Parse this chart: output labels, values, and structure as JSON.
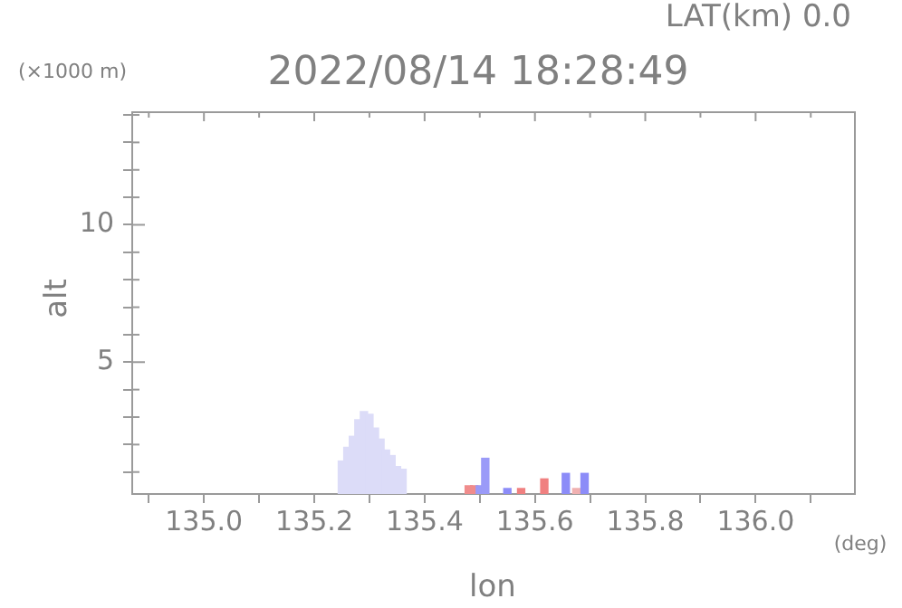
{
  "chart_data": {
    "type": "bar",
    "title": "2022/08/14 18:28:49",
    "xlabel": "lon",
    "ylabel": "alt",
    "annotations": [
      "LAT(km) 0.0",
      "(×1000 m)",
      "(deg)"
    ],
    "x": [
      135.25,
      135.26,
      135.27,
      135.28,
      135.29,
      135.3,
      135.31,
      135.32,
      135.33,
      135.34,
      135.35,
      135.36,
      135.48,
      135.49,
      135.5,
      135.51,
      135.55,
      135.575,
      135.617,
      135.656,
      135.675,
      135.69
    ],
    "values": [
      1.4,
      1.9,
      2.3,
      2.9,
      3.2,
      3.1,
      2.6,
      2.2,
      1.8,
      1.6,
      1.2,
      1.1,
      0.5,
      0.5,
      0.5,
      1.5,
      0.4,
      0.4,
      0.75,
      0.95,
      0.4,
      0.95
    ],
    "colors": [
      "#dcdcf8",
      "#dcdcf8",
      "#dcdcf8",
      "#dcdcf8",
      "#dcdcf8",
      "#dcdcf8",
      "#dcdcf8",
      "#dcdcf8",
      "#dcdcf8",
      "#dcdcf8",
      "#dcdcf8",
      "#dcdcf8",
      "#f08c8c",
      "#f08c8c",
      "#9a9af8",
      "#9a9af8",
      "#8c8cf8",
      "#f08080",
      "#f08080",
      "#8c8cf8",
      "#f0b0b0",
      "#8c8cf8"
    ],
    "xlim": [
      134.87,
      136.18
    ],
    "xticks": [
      {
        "value": 134.9,
        "label": null
      },
      {
        "value": 135.0,
        "label": "135.0"
      },
      {
        "value": 135.1,
        "label": null
      },
      {
        "value": 135.2,
        "label": "135.2"
      },
      {
        "value": 135.3,
        "label": null
      },
      {
        "value": 135.4,
        "label": "135.4"
      },
      {
        "value": 135.5,
        "label": null
      },
      {
        "value": 135.6,
        "label": "135.6"
      },
      {
        "value": 135.7,
        "label": null
      },
      {
        "value": 135.8,
        "label": "135.8"
      },
      {
        "value": 135.9,
        "label": null
      },
      {
        "value": 136.0,
        "label": "136.0"
      },
      {
        "value": 136.1,
        "label": null
      }
    ],
    "ylim": [
      0.2,
      14.1
    ],
    "yticks": [
      {
        "value": 1,
        "label": null
      },
      {
        "value": 2,
        "label": null
      },
      {
        "value": 3,
        "label": null
      },
      {
        "value": 4,
        "label": null
      },
      5,
      {
        "value": 6,
        "label": null
      },
      {
        "value": 7,
        "label": null
      },
      {
        "value": 8,
        "label": null
      },
      {
        "value": 9,
        "label": null
      },
      10,
      {
        "value": 11,
        "label": null
      },
      {
        "value": 12,
        "label": null
      },
      {
        "value": 13,
        "label": null
      },
      {
        "value": 14,
        "label": null
      }
    ],
    "grid": false,
    "legend": false
  }
}
